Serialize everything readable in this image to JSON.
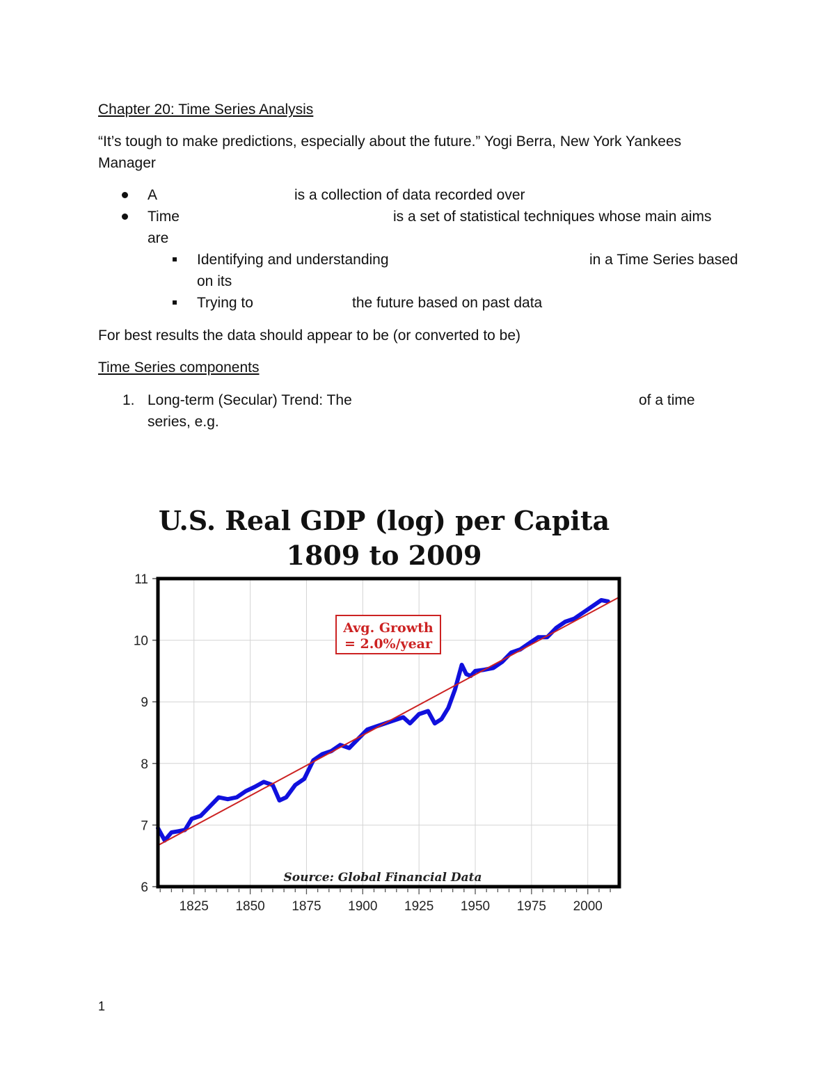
{
  "heading": "Chapter 20: Time Series Analysis",
  "quote": {
    "line1": "“It’s tough to make predictions, especially about the future.” Yogi Berra, New York Yankees",
    "line2": "Manager"
  },
  "bullets": [
    {
      "a": "A",
      "b": "is a collection of data recorded over"
    },
    {
      "a": "Time",
      "b": "is a set of statistical techniques whose main aims",
      "c": "are"
    }
  ],
  "sub_bullets": [
    {
      "a": "Identifying and understanding",
      "b": "in a Time Series based",
      "c": "on its"
    },
    {
      "a": "Trying to",
      "b": "the future based on past data"
    }
  ],
  "best_results": "For best results the data should appear to be (or converted to be)",
  "components_heading": "Time Series components",
  "component1": {
    "num": "1.",
    "a": "Long-term (Secular) Trend: The",
    "b": "of a time",
    "c": "series, e.g."
  },
  "page_number": "1",
  "chart_data": {
    "type": "line",
    "title_line1": "U.S. Real GDP (log) per Capita",
    "title_line2": "1809 to 2009",
    "annotation_line1": "Avg. Growth",
    "annotation_line2": "= 2.0%/year",
    "source": "Source: Global Financial Data",
    "xlim": [
      1809,
      2014
    ],
    "ylim": [
      6,
      11
    ],
    "x_ticks": [
      1825,
      1850,
      1875,
      1900,
      1925,
      1950,
      1975,
      2000
    ],
    "y_ticks": [
      6,
      7,
      8,
      9,
      10,
      11
    ],
    "colors": {
      "series": "#1010dd",
      "trend": "#cc2222",
      "annotation": "#cc2222"
    },
    "series": [
      {
        "name": "Real GDP (log) per Capita",
        "x": [
          1809,
          1812,
          1815,
          1818,
          1821,
          1824,
          1828,
          1832,
          1836,
          1840,
          1844,
          1848,
          1852,
          1856,
          1860,
          1863,
          1866,
          1870,
          1874,
          1878,
          1882,
          1886,
          1890,
          1894,
          1898,
          1902,
          1906,
          1910,
          1914,
          1918,
          1921,
          1925,
          1929,
          1932,
          1935,
          1938,
          1941,
          1944,
          1946,
          1948,
          1950,
          1954,
          1958,
          1962,
          1966,
          1970,
          1974,
          1978,
          1982,
          1986,
          1990,
          1994,
          1998,
          2002,
          2006,
          2009
        ],
        "values": [
          6.95,
          6.75,
          6.88,
          6.9,
          6.92,
          7.1,
          7.15,
          7.3,
          7.45,
          7.42,
          7.45,
          7.55,
          7.62,
          7.7,
          7.65,
          7.4,
          7.45,
          7.65,
          7.75,
          8.05,
          8.15,
          8.2,
          8.3,
          8.25,
          8.4,
          8.55,
          8.6,
          8.65,
          8.7,
          8.75,
          8.65,
          8.8,
          8.85,
          8.65,
          8.72,
          8.9,
          9.2,
          9.6,
          9.45,
          9.42,
          9.5,
          9.52,
          9.55,
          9.65,
          9.8,
          9.85,
          9.95,
          10.05,
          10.05,
          10.2,
          10.3,
          10.35,
          10.45,
          10.55,
          10.65,
          10.63
        ]
      },
      {
        "name": "Trend (2.0%/year)",
        "x": [
          1809,
          2014
        ],
        "values": [
          6.67,
          10.7
        ]
      }
    ]
  }
}
